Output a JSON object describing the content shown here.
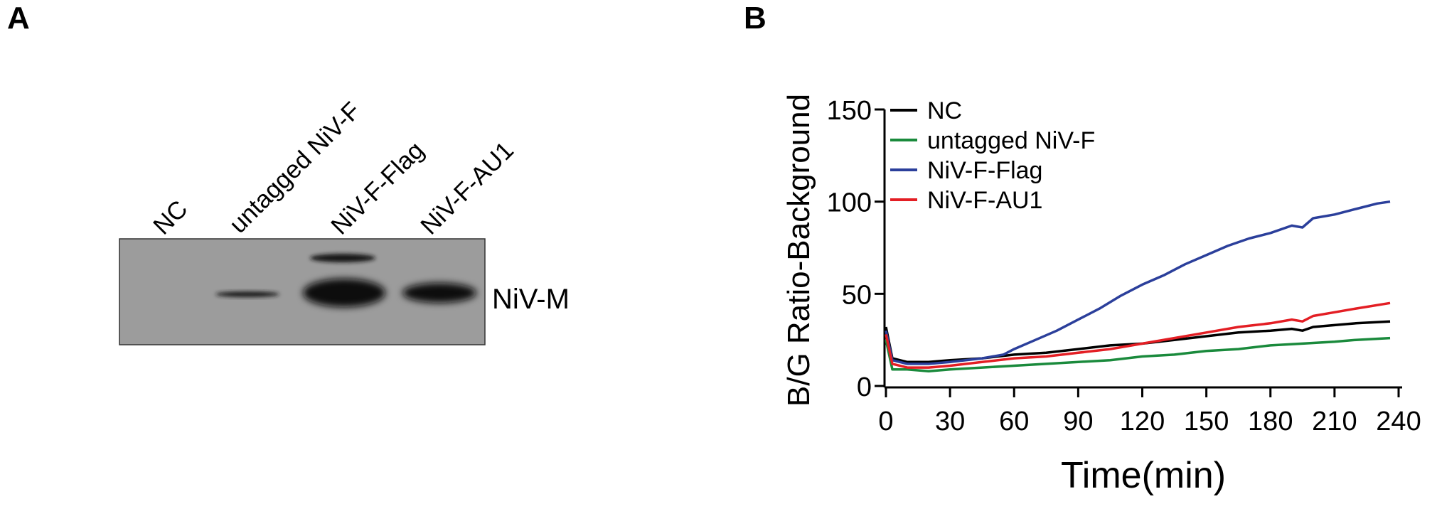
{
  "panel_a": {
    "letter": "A",
    "lane_labels": [
      "NC",
      "untagged NiV-F",
      "NiV-F-Flag",
      "NiV-F-AU1"
    ],
    "band_label": "NiV-M"
  },
  "panel_b": {
    "letter": "B"
  },
  "chart_data": {
    "type": "line",
    "xlabel": "Time(min)",
    "ylabel": "B/G Ratio-Background",
    "xlim": [
      0,
      240
    ],
    "ylim": [
      0,
      150
    ],
    "xticks": [
      0,
      30,
      60,
      90,
      120,
      150,
      180,
      210,
      240
    ],
    "yticks": [
      0,
      50,
      100,
      150
    ],
    "grid": false,
    "legend_position": "top-left",
    "series": [
      {
        "name": "NC",
        "color": "#000000",
        "x": [
          0,
          3,
          10,
          20,
          30,
          45,
          60,
          75,
          90,
          105,
          120,
          135,
          150,
          165,
          180,
          190,
          195,
          200,
          210,
          220,
          236
        ],
        "y": [
          32,
          15,
          13,
          13,
          14,
          15,
          17,
          18,
          20,
          22,
          23,
          25,
          27,
          29,
          30,
          31,
          30,
          32,
          33,
          34,
          35
        ]
      },
      {
        "name": "untagged NiV-F",
        "color": "#1a8a3c",
        "x": [
          0,
          3,
          10,
          20,
          30,
          45,
          60,
          75,
          90,
          105,
          120,
          135,
          150,
          165,
          180,
          195,
          210,
          220,
          236
        ],
        "y": [
          25,
          9,
          9,
          8,
          9,
          10,
          11,
          12,
          13,
          14,
          16,
          17,
          19,
          20,
          22,
          23,
          24,
          25,
          26
        ]
      },
      {
        "name": "NiV-F-Flag",
        "color": "#2b3f9b",
        "x": [
          0,
          3,
          10,
          20,
          30,
          45,
          55,
          60,
          70,
          80,
          90,
          100,
          110,
          120,
          130,
          140,
          150,
          160,
          170,
          180,
          190,
          195,
          200,
          210,
          220,
          230,
          236
        ],
        "y": [
          30,
          14,
          12,
          12,
          13,
          15,
          17,
          20,
          25,
          30,
          36,
          42,
          49,
          55,
          60,
          66,
          71,
          76,
          80,
          83,
          87,
          86,
          91,
          93,
          96,
          99,
          100
        ]
      },
      {
        "name": "NiV-F-AU1",
        "color": "#e31e24",
        "x": [
          0,
          3,
          10,
          20,
          30,
          45,
          60,
          75,
          90,
          105,
          120,
          135,
          150,
          165,
          180,
          190,
          195,
          200,
          210,
          220,
          236
        ],
        "y": [
          28,
          12,
          10,
          10,
          11,
          13,
          15,
          16,
          18,
          20,
          23,
          26,
          29,
          32,
          34,
          36,
          35,
          38,
          40,
          42,
          45
        ]
      }
    ]
  }
}
